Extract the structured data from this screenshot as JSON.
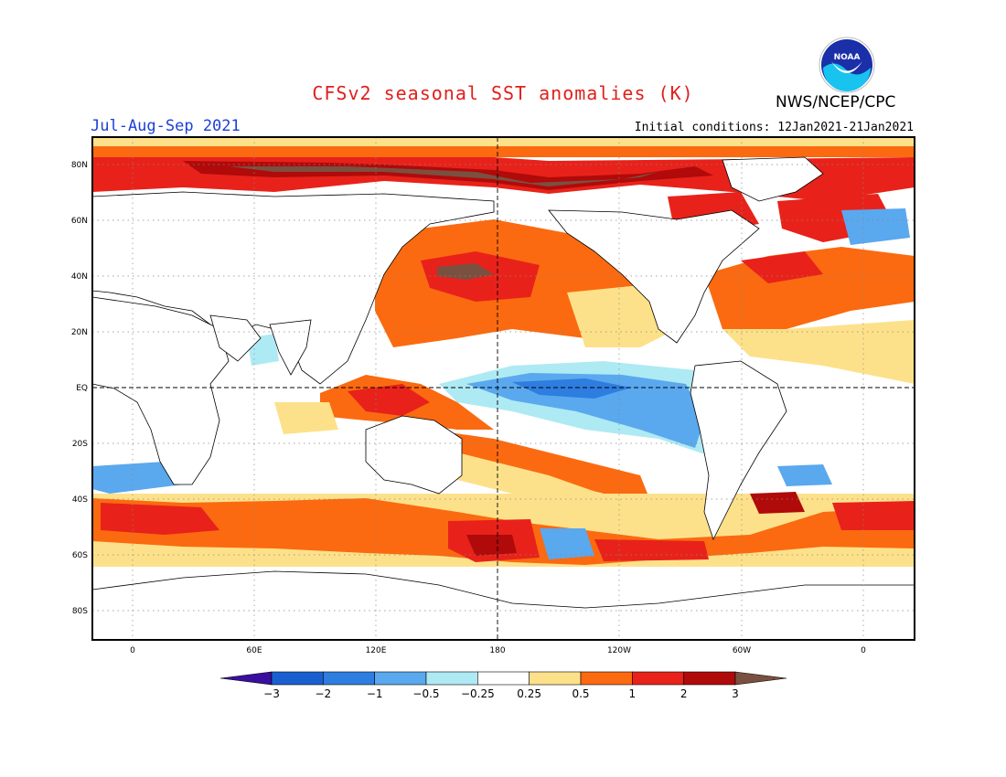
{
  "title": "CFSv2 seasonal SST anomalies (K)",
  "agency": "NWS/NCEP/CPC",
  "logo_text": "NOAA",
  "season": "Jul-Aug-Sep 2021",
  "initial_conditions": "Initial conditions: 12Jan2021-21Jan2021",
  "lat_labels": [
    "80N",
    "60N",
    "40N",
    "20N",
    "EQ",
    "20S",
    "40S",
    "60S",
    "80S"
  ],
  "lon_labels": [
    "0",
    "60E",
    "120E",
    "180",
    "120W",
    "60W",
    "0"
  ],
  "colorbar": {
    "labels": [
      "−3",
      "−2",
      "−1",
      "−0.5",
      "−0.25",
      "0.25",
      "0.5",
      "1",
      "2",
      "3"
    ],
    "colors": [
      "#3a0fa0",
      "#1a5fd0",
      "#2e7de0",
      "#5aa8ee",
      "#aeeaf4",
      "#ffffff",
      "#fde18a",
      "#fb6a10",
      "#e8221a",
      "#b00a0a",
      "#7a5040"
    ]
  }
}
